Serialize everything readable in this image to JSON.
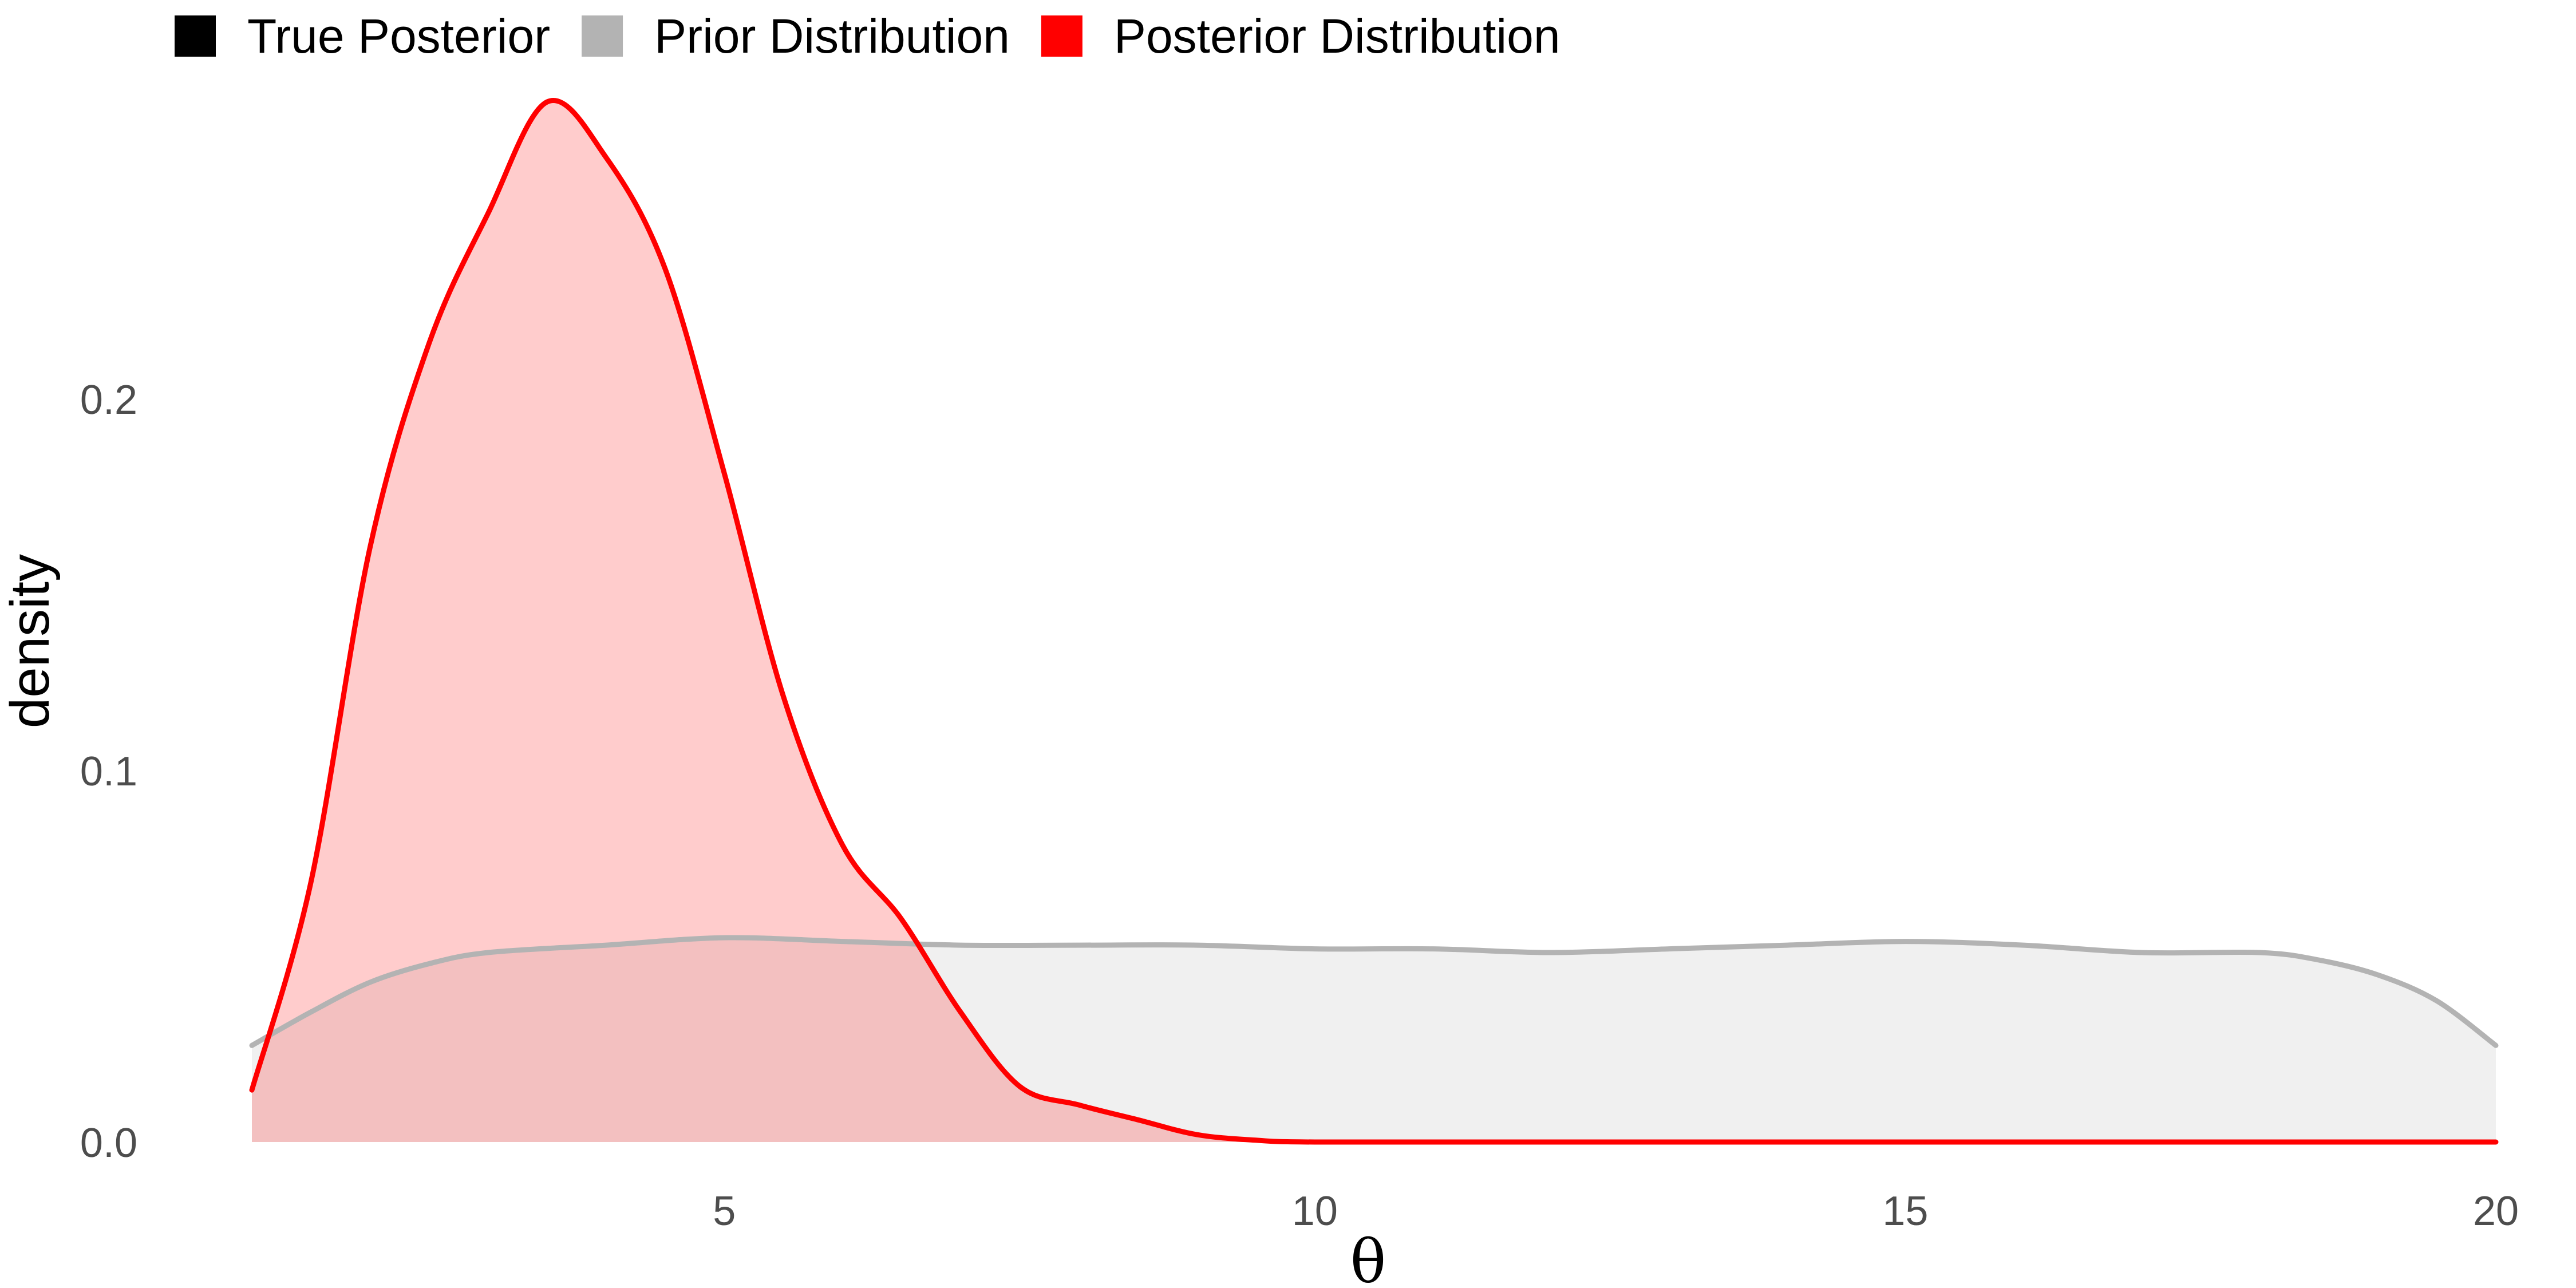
{
  "chart_data": {
    "type": "area",
    "xlabel": "θ",
    "ylabel": "density",
    "xlim": [
      1,
      20
    ],
    "ylim": [
      0,
      0.28
    ],
    "x_ticks": [
      5,
      10,
      15,
      20
    ],
    "x_tick_labels": [
      "5",
      "10",
      "15",
      "20"
    ],
    "y_ticks": [
      0.0,
      0.1,
      0.2
    ],
    "y_tick_labels": [
      "0.0",
      "0.1",
      "0.2"
    ],
    "grid": false,
    "legend": {
      "placement": "top-left",
      "entries": [
        {
          "label": "True Posterior",
          "color": "#000000"
        },
        {
          "label": "Prior Distribution",
          "color": "#b3b3b3"
        },
        {
          "label": "Posterior Distribution",
          "color": "#ff0000"
        }
      ]
    },
    "series": [
      {
        "name": "Prior Distribution",
        "line_color": "#b3b3b3",
        "fill_color": "#b3b3b3",
        "fill_opacity": 0.2,
        "x": [
          1,
          1.5,
          2,
          2.5,
          3,
          4,
          5,
          6,
          7,
          8,
          9,
          10,
          11,
          12,
          13,
          14,
          15,
          16,
          17,
          18,
          18.5,
          19,
          19.5,
          20
        ],
        "y": [
          0.026,
          0.035,
          0.043,
          0.048,
          0.051,
          0.053,
          0.055,
          0.054,
          0.053,
          0.053,
          0.053,
          0.052,
          0.052,
          0.051,
          0.052,
          0.053,
          0.054,
          0.053,
          0.051,
          0.051,
          0.049,
          0.045,
          0.038,
          0.026
        ]
      },
      {
        "name": "Posterior Distribution",
        "line_color": "#ff0000",
        "fill_color": "#ff0000",
        "fill_opacity": 0.2,
        "x": [
          1,
          1.5,
          2,
          2.5,
          3,
          3.5,
          4,
          4.5,
          5,
          5.5,
          6,
          6.5,
          7,
          7.5,
          8,
          8.5,
          9,
          9.5,
          10,
          12,
          15,
          20
        ],
        "y": [
          0.014,
          0.07,
          0.16,
          0.215,
          0.25,
          0.28,
          0.265,
          0.235,
          0.18,
          0.12,
          0.08,
          0.06,
          0.035,
          0.015,
          0.01,
          0.006,
          0.002,
          0.0005,
          0.0,
          0.0,
          0.0,
          0.0
        ]
      }
    ]
  }
}
